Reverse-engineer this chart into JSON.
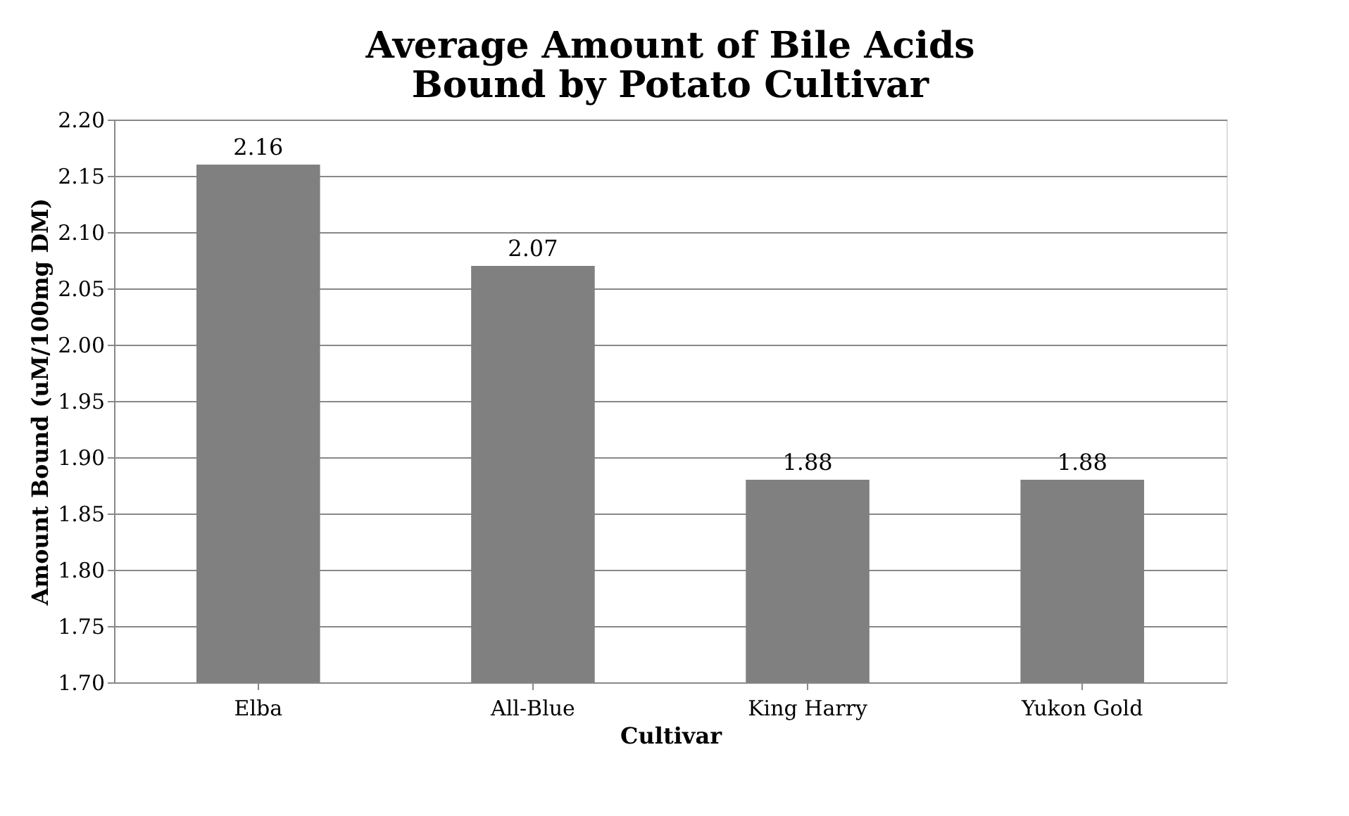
{
  "chart_data": {
    "type": "bar",
    "title": "Average Amount of Bile Acids Bound by Potato Cultivar",
    "xlabel": "Cultivar",
    "ylabel": "Amount Bound (uM/100mg DM)",
    "categories": [
      "Elba",
      "All-Blue",
      "King Harry",
      "Yukon Gold"
    ],
    "values": [
      2.16,
      2.07,
      1.88,
      1.88
    ],
    "color": "#808080",
    "ylim": [
      1.7,
      2.2
    ],
    "yticks": [
      {
        "value": 1.7,
        "label": "1.70"
      },
      {
        "value": 1.75,
        "label": "1.75"
      },
      {
        "value": 1.8,
        "label": "1.80"
      },
      {
        "value": 1.85,
        "label": "1.85"
      },
      {
        "value": 1.9,
        "label": "1.90"
      },
      {
        "value": 1.95,
        "label": "1.95"
      },
      {
        "value": 2.0,
        "label": "2.00"
      },
      {
        "value": 2.05,
        "label": "2.05"
      },
      {
        "value": 2.1,
        "label": "2.10"
      },
      {
        "value": 2.15,
        "label": "2.15"
      },
      {
        "value": 2.2,
        "label": "2.20"
      }
    ],
    "grid": "y",
    "data_labels": true
  }
}
